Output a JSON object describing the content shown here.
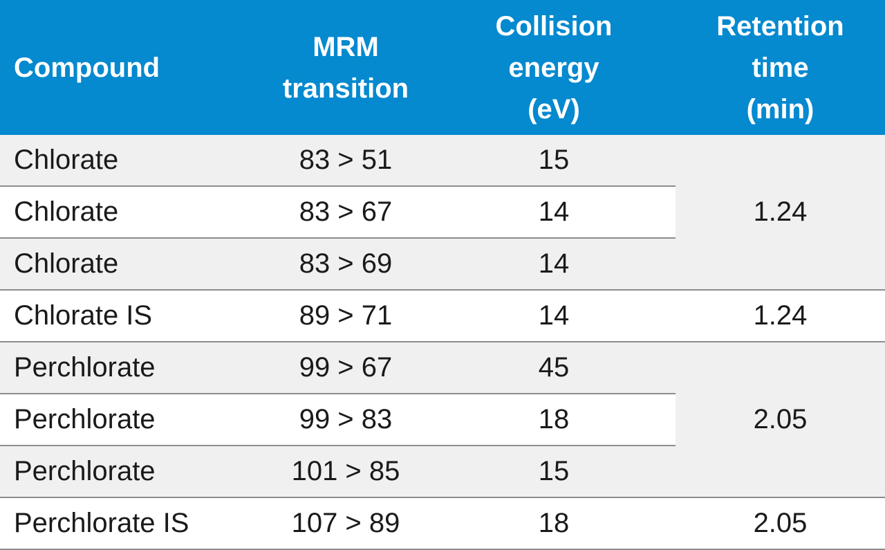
{
  "header": {
    "compound": "Compound",
    "mrm_transition": [
      "MRM",
      "transition"
    ],
    "collision_energy": [
      "Collision",
      "energy",
      "(eV)"
    ],
    "retention_time": [
      "Retention",
      "time",
      "(min)"
    ]
  },
  "groups": [
    {
      "retention_time": "1.24",
      "rows": [
        {
          "compound": "Chlorate",
          "mrm": "83 > 51",
          "ce": "15"
        },
        {
          "compound": "Chlorate",
          "mrm": "83 > 67",
          "ce": "14"
        },
        {
          "compound": "Chlorate",
          "mrm": "83 > 69",
          "ce": "14"
        }
      ]
    },
    {
      "retention_time": "1.24",
      "rows": [
        {
          "compound": "Chlorate IS",
          "mrm": "89 > 71",
          "ce": "14"
        }
      ]
    },
    {
      "retention_time": "2.05",
      "rows": [
        {
          "compound": "Perchlorate",
          "mrm": "99 > 67",
          "ce": "45"
        },
        {
          "compound": "Perchlorate",
          "mrm": "99 > 83",
          "ce": "18"
        },
        {
          "compound": "Perchlorate",
          "mrm": "101 > 85",
          "ce": "15"
        }
      ]
    },
    {
      "retention_time": "2.05",
      "rows": [
        {
          "compound": "Perchlorate IS",
          "mrm": "107 > 89",
          "ce": "18"
        }
      ]
    }
  ]
}
